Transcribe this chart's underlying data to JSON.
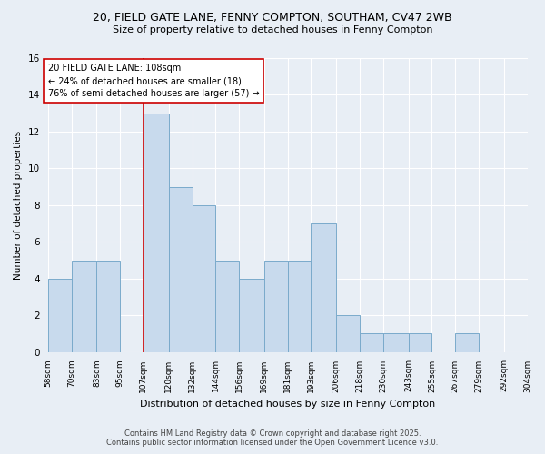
{
  "title_line1": "20, FIELD GATE LANE, FENNY COMPTON, SOUTHAM, CV47 2WB",
  "title_line2": "Size of property relative to detached houses in Fenny Compton",
  "xlabel": "Distribution of detached houses by size in Fenny Compton",
  "ylabel": "Number of detached properties",
  "bin_edges": [
    58,
    70,
    83,
    95,
    107,
    120,
    132,
    144,
    156,
    169,
    181,
    193,
    206,
    218,
    230,
    243,
    255,
    267,
    279,
    292,
    304
  ],
  "counts": [
    4,
    5,
    5,
    0,
    13,
    9,
    8,
    5,
    4,
    5,
    5,
    7,
    2,
    1,
    1,
    1,
    0,
    1,
    0,
    0
  ],
  "bar_color": "#c8daed",
  "bar_edge_color": "#7aaacb",
  "vline_x": 107,
  "vline_color": "#cc0000",
  "annotation_text": "20 FIELD GATE LANE: 108sqm\n← 24% of detached houses are smaller (18)\n76% of semi-detached houses are larger (57) →",
  "annotation_box_facecolor": "white",
  "annotation_box_edge": "#cc0000",
  "ylim": [
    0,
    16
  ],
  "yticks": [
    0,
    2,
    4,
    6,
    8,
    10,
    12,
    14,
    16
  ],
  "footer_line1": "Contains HM Land Registry data © Crown copyright and database right 2025.",
  "footer_line2": "Contains public sector information licensed under the Open Government Licence v3.0.",
  "bg_color": "#e8eef5",
  "plot_bg_color": "#e8eef5",
  "grid_color": "#ffffff"
}
